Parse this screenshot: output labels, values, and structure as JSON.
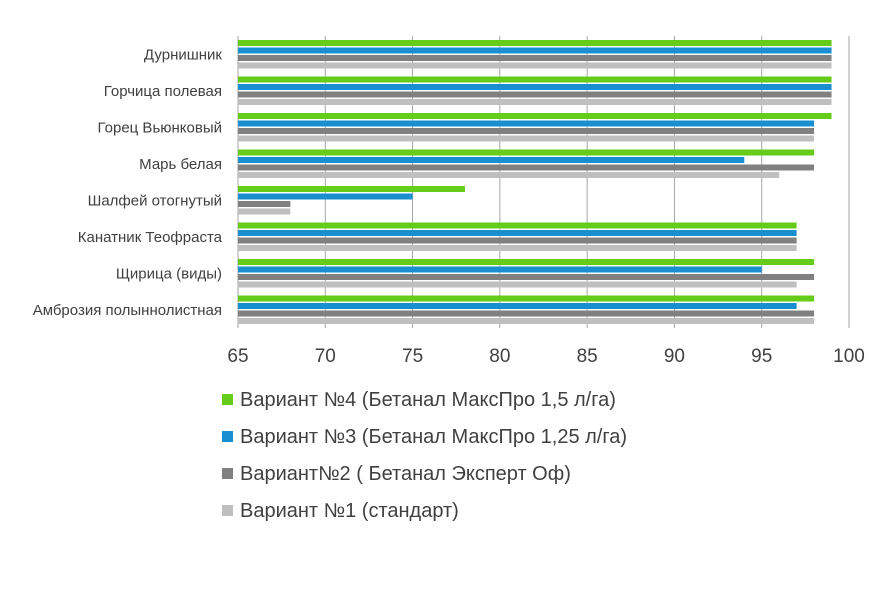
{
  "chart_data": {
    "type": "bar",
    "orientation": "horizontal",
    "categories": [
      "Дурнишник",
      "Горчица полевая",
      "Горец Вьюнковый",
      "Марь белая",
      "Шалфей отогнутый",
      "Канатник Теофраста",
      "Щирица (виды)",
      "Амброзия полыннолистная"
    ],
    "series": [
      {
        "name": "Вариант №4 (Бетанал МаксПро 1,5 л/га)",
        "color": "#66cc1a",
        "values": [
          99,
          99,
          99,
          98,
          78,
          97,
          98,
          98
        ]
      },
      {
        "name": "Вариант №3 (Бетанал МаксПро 1,25 л/га)",
        "color": "#1a8fcf",
        "values": [
          99,
          99,
          98,
          94,
          75,
          97,
          95,
          97
        ]
      },
      {
        "name": "Вариант№2 ( Бетанал Эксперт Оф)",
        "color": "#808080",
        "values": [
          99,
          99,
          98,
          98,
          68,
          97,
          98,
          98
        ]
      },
      {
        "name": "Вариант №1 (стандарт)",
        "color": "#bfbfbf",
        "values": [
          99,
          99,
          98,
          96,
          68,
          97,
          97,
          98
        ]
      }
    ],
    "xlim": [
      65,
      100
    ],
    "xticks": [
      "65",
      "70",
      "75",
      "80",
      "85",
      "90",
      "95",
      "100"
    ],
    "grid": true,
    "legend_position": "bottom"
  }
}
